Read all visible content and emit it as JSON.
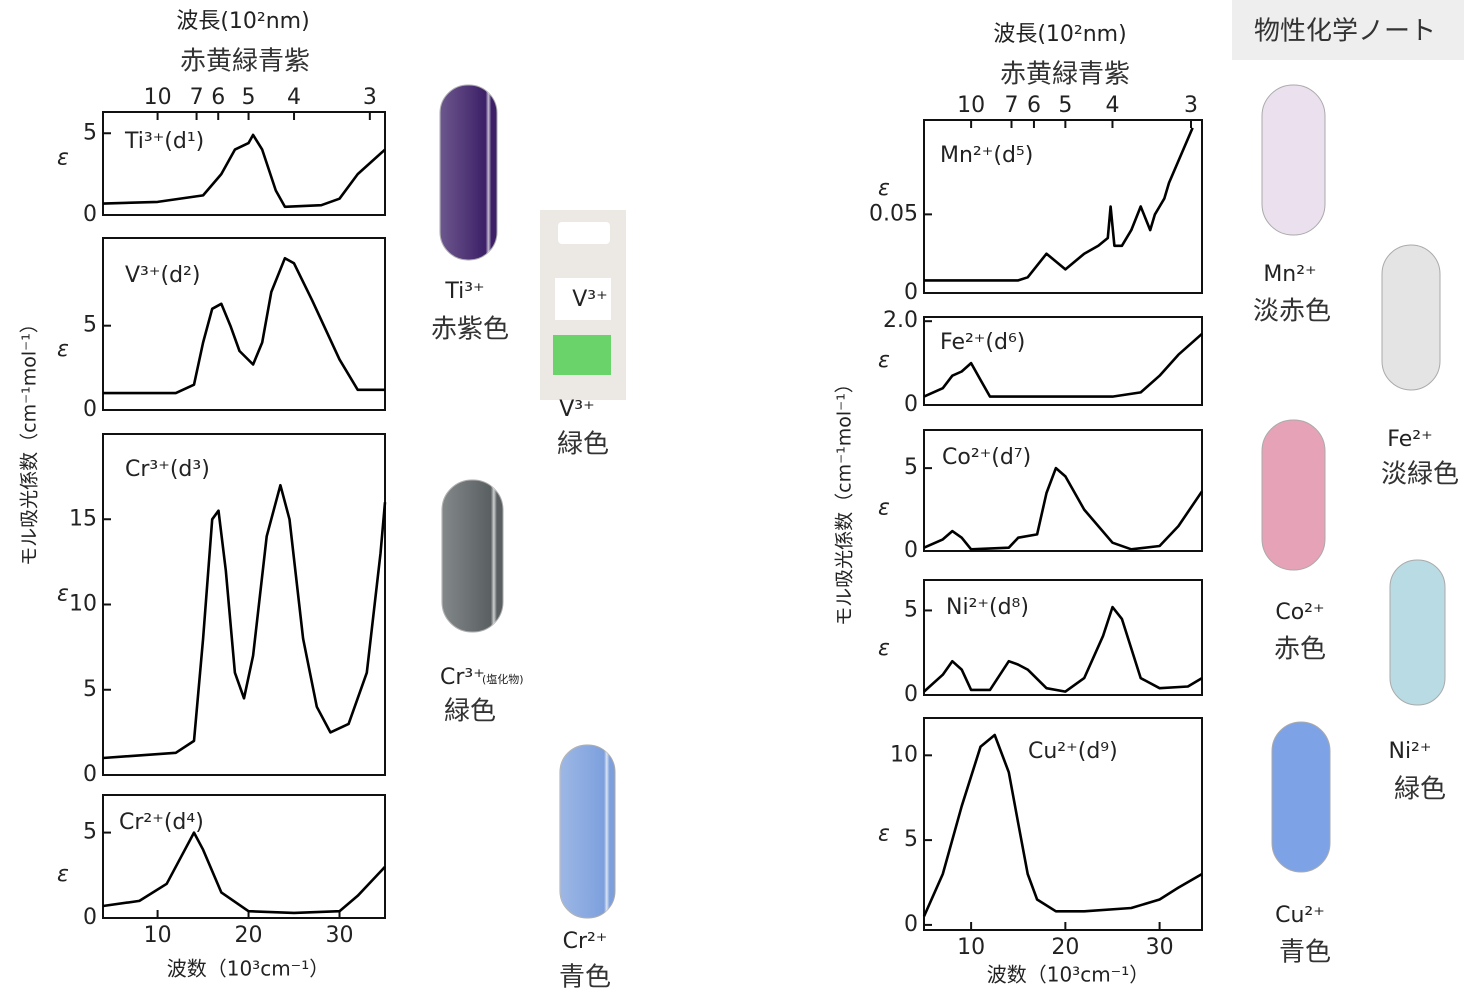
{
  "watermark": "物性化学ノート",
  "panels": [
    {
      "wavelength_label": "波長(10²nm)",
      "colors_label": "赤黄緑青紫",
      "y_label": "モル吸光係数（cm⁻¹mol⁻¹）",
      "x_label": "波数（10³cm⁻¹）"
    },
    {
      "wavelength_label": "波長(10²nm)",
      "colors_label": "赤黄緑青紫",
      "y_label": "モル吸光係数（cm⁻¹mol⁻¹）",
      "x_label": "波数（10³cm⁻¹）"
    }
  ],
  "tubes": [
    {
      "ion": "Ti³⁺",
      "color_name": "赤紫色"
    },
    {
      "ion": "V³⁺",
      "color_name": "緑色",
      "card_label": "V³⁺"
    },
    {
      "ion": "Cr³⁺",
      "note": "(塩化物)",
      "color_name": "緑色"
    },
    {
      "ion": "Cr²⁺",
      "color_name": "青色"
    },
    {
      "ion": "Mn²⁺",
      "color_name": "淡赤色"
    },
    {
      "ion": "Fe²⁺",
      "color_name": "淡緑色"
    },
    {
      "ion": "Co²⁺",
      "color_name": "赤色"
    },
    {
      "ion": "Ni²⁺",
      "color_name": "緑色"
    },
    {
      "ion": "Cu²⁺",
      "color_name": "青色"
    }
  ],
  "chart_data": [
    {
      "type": "line",
      "label": "Ti³⁺(d¹)",
      "y_label": "ε",
      "color": "#000000",
      "x": [
        4,
        10,
        15,
        17,
        18.5,
        20,
        20.5,
        21.5,
        23,
        24,
        28,
        30,
        32,
        35
      ],
      "values": [
        0.7,
        0.8,
        1.2,
        2.5,
        4.0,
        4.4,
        4.9,
        4.0,
        1.5,
        0.5,
        0.6,
        1.0,
        2.5,
        4.0
      ],
      "xlim": [
        4,
        35
      ],
      "ylim": [
        0,
        6.3
      ],
      "yticks": [
        0,
        5
      ],
      "x2ticks": [
        10,
        7,
        6,
        5,
        4,
        3
      ],
      "x2scale": "reciprocal"
    },
    {
      "type": "line",
      "label": "V³⁺(d²)",
      "y_label": "ε",
      "color": "#000000",
      "x": [
        4,
        12,
        14,
        15,
        16,
        17,
        18,
        19,
        20.5,
        21.5,
        22.5,
        24,
        25,
        27,
        30,
        32,
        35
      ],
      "values": [
        1.0,
        1.0,
        1.5,
        4.0,
        6.0,
        6.3,
        5.0,
        3.5,
        2.7,
        4.0,
        7.0,
        9.0,
        8.7,
        6.5,
        3.0,
        1.2,
        1.2
      ],
      "xlim": [
        4,
        35
      ],
      "ylim": [
        0,
        10.2
      ],
      "yticks": [
        0,
        5
      ]
    },
    {
      "type": "line",
      "label": "Cr³⁺(d³)",
      "y_label": "ε",
      "color": "#000000",
      "x": [
        4,
        12,
        14,
        15,
        16,
        16.7,
        17.5,
        18.5,
        19.5,
        20.5,
        22,
        23.5,
        24.5,
        26,
        27.5,
        29,
        31,
        33,
        34.5,
        35
      ],
      "values": [
        1.0,
        1.3,
        2.0,
        8.0,
        15.0,
        15.5,
        12.0,
        6.0,
        4.5,
        7.0,
        14.0,
        17.0,
        15.0,
        8.0,
        4.0,
        2.5,
        3.0,
        6.0,
        13.0,
        16.0
      ],
      "xlim": [
        4,
        35
      ],
      "ylim": [
        0,
        20
      ],
      "yticks": [
        0,
        5,
        10,
        15
      ]
    },
    {
      "type": "line",
      "label": "Cr²⁺(d⁴)",
      "y_label": "ε",
      "color": "#000000",
      "x": [
        4,
        8,
        11,
        13,
        14,
        15,
        17,
        20,
        25,
        30,
        32,
        35
      ],
      "values": [
        0.7,
        1.0,
        2.0,
        4.0,
        5.0,
        4.0,
        1.5,
        0.4,
        0.3,
        0.4,
        1.3,
        3.0
      ],
      "xlim": [
        4,
        35
      ],
      "ylim": [
        0,
        7.2
      ],
      "yticks": [
        0,
        5
      ],
      "xticks": [
        10,
        20,
        30
      ]
    },
    {
      "type": "line",
      "label": "Mn²⁺(d⁵)",
      "y_label": "ε",
      "color": "#000000",
      "x": [
        5,
        15,
        16,
        18,
        19,
        20,
        22,
        23.5,
        24.5,
        24.8,
        25.2,
        26,
        27,
        28,
        29,
        29.5,
        30,
        30.5,
        31,
        33.5
      ],
      "values": [
        0.008,
        0.008,
        0.01,
        0.025,
        0.02,
        0.015,
        0.025,
        0.03,
        0.035,
        0.055,
        0.03,
        0.03,
        0.04,
        0.055,
        0.04,
        0.05,
        0.055,
        0.06,
        0.07,
        0.105
      ],
      "xlim": [
        5,
        34.5
      ],
      "ylim": [
        0,
        0.11
      ],
      "yticks": [
        0,
        0.05
      ],
      "x2ticks": [
        10,
        7,
        6,
        5,
        4,
        3
      ],
      "x2scale": "reciprocal"
    },
    {
      "type": "line",
      "label": "Fe²⁺(d⁶)",
      "y_label": "ε",
      "color": "#000000",
      "x": [
        5,
        7,
        8,
        9,
        10,
        11,
        12,
        15,
        25,
        28,
        30,
        32,
        34.5
      ],
      "values": [
        0.2,
        0.4,
        0.7,
        0.8,
        1.0,
        0.6,
        0.2,
        0.2,
        0.2,
        0.3,
        0.7,
        1.2,
        1.7
      ],
      "xlim": [
        5,
        34.5
      ],
      "ylim": [
        0,
        2.1
      ],
      "yticks": [
        0,
        {
          "value": 2,
          "label": "2.0"
        }
      ]
    },
    {
      "type": "line",
      "label": "Co²⁺(d⁷)",
      "y_label": "ε",
      "color": "#000000",
      "x": [
        5,
        7,
        8,
        9,
        10,
        14,
        15,
        17,
        18,
        19,
        20,
        22,
        25,
        27,
        30,
        32,
        34.5
      ],
      "values": [
        0.2,
        0.7,
        1.2,
        0.8,
        0.1,
        0.2,
        0.8,
        1.0,
        3.5,
        5.0,
        4.5,
        2.5,
        0.5,
        0.1,
        0.3,
        1.5,
        3.6
      ],
      "xlim": [
        5,
        34.5
      ],
      "ylim": [
        0,
        7.3
      ],
      "yticks": [
        0,
        5
      ]
    },
    {
      "type": "line",
      "label": "Ni²⁺(d⁸)",
      "y_label": "ε",
      "color": "#000000",
      "x": [
        5,
        7,
        8,
        9,
        10,
        12,
        14,
        15,
        16,
        18,
        20,
        22,
        24,
        25,
        26,
        28,
        30,
        33,
        34.5
      ],
      "values": [
        0.2,
        1.2,
        2.0,
        1.5,
        0.3,
        0.3,
        2.0,
        1.8,
        1.5,
        0.4,
        0.2,
        1.0,
        3.5,
        5.2,
        4.5,
        1.0,
        0.4,
        0.5,
        1.0
      ],
      "xlim": [
        5,
        34.5
      ],
      "ylim": [
        0,
        6.8
      ],
      "yticks": [
        0,
        5
      ]
    },
    {
      "type": "line",
      "label": "Cu²⁺(d⁹)",
      "y_label": "ε",
      "color": "#000000",
      "x": [
        5,
        7,
        9,
        11,
        12.5,
        14,
        15,
        16,
        17,
        19,
        22,
        27,
        30,
        32,
        34.5
      ],
      "values": [
        0.5,
        3.0,
        7.0,
        10.5,
        11.2,
        9.0,
        6.0,
        3.0,
        1.5,
        0.8,
        0.8,
        1.0,
        1.5,
        2.2,
        3.0
      ],
      "xlim": [
        5,
        34.5
      ],
      "ylim": [
        -0.3,
        12.2
      ],
      "yticks": [
        0,
        5,
        10
      ],
      "xticks": [
        10,
        20,
        30
      ]
    }
  ]
}
